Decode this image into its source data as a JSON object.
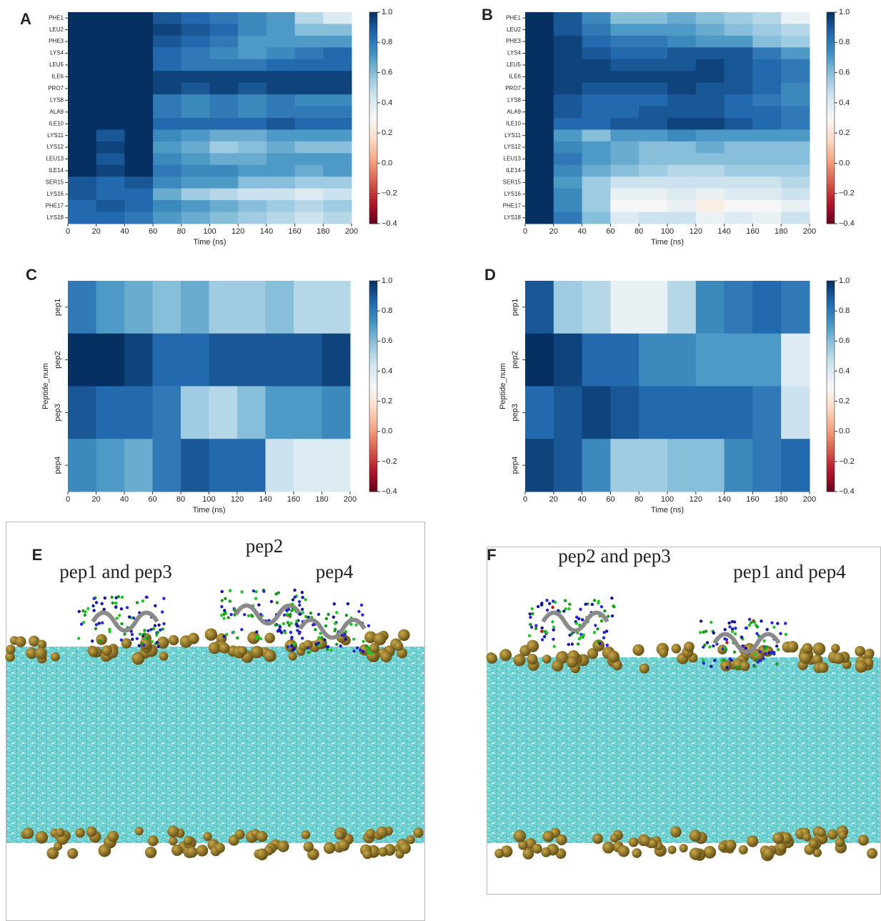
{
  "chart_data": [
    {
      "type": "heatmap",
      "panel": "A",
      "xlabel": "Time (ns)",
      "colormap": "RdBu",
      "rows": [
        "PHE1",
        "LEU2",
        "PHE3",
        "LYS4",
        "LEU5",
        "ILE6",
        "PRO7",
        "LYS8",
        "ALA9",
        "ILE10",
        "LYS11",
        "LYS12",
        "LEU13",
        "ILE14",
        "SER15",
        "LYS16",
        "PHE17",
        "LYS18"
      ],
      "x": [
        10,
        30,
        50,
        70,
        90,
        110,
        130,
        150,
        170,
        190
      ],
      "values": [
        [
          1,
          1,
          1,
          0.9,
          0.85,
          0.8,
          0.75,
          0.7,
          0.5,
          0.4
        ],
        [
          1,
          1,
          1,
          0.95,
          0.9,
          0.85,
          0.75,
          0.7,
          0.6,
          0.6
        ],
        [
          1,
          1,
          1,
          0.9,
          0.85,
          0.8,
          0.7,
          0.7,
          0.7,
          0.7
        ],
        [
          1,
          1,
          1,
          0.85,
          0.8,
          0.75,
          0.7,
          0.75,
          0.8,
          0.85
        ],
        [
          1,
          1,
          1,
          0.85,
          0.8,
          0.8,
          0.8,
          0.85,
          0.85,
          0.85
        ],
        [
          1,
          1,
          1,
          0.95,
          0.95,
          0.95,
          0.95,
          0.95,
          0.95,
          0.95
        ],
        [
          1,
          1,
          1,
          0.95,
          0.9,
          0.95,
          0.9,
          0.95,
          0.95,
          0.95
        ],
        [
          1,
          1,
          1,
          0.8,
          0.75,
          0.8,
          0.75,
          0.8,
          0.75,
          0.75
        ],
        [
          1,
          1,
          1,
          0.8,
          0.75,
          0.8,
          0.75,
          0.8,
          0.8,
          0.8
        ],
        [
          1,
          1,
          1,
          0.85,
          0.85,
          0.85,
          0.85,
          0.9,
          0.85,
          0.85
        ],
        [
          1,
          0.9,
          1,
          0.75,
          0.7,
          0.65,
          0.65,
          0.7,
          0.7,
          0.7
        ],
        [
          1,
          0.95,
          1,
          0.7,
          0.65,
          0.55,
          0.6,
          0.65,
          0.6,
          0.6
        ],
        [
          1,
          0.9,
          1,
          0.75,
          0.7,
          0.65,
          0.65,
          0.7,
          0.7,
          0.7
        ],
        [
          1,
          0.95,
          1,
          0.8,
          0.75,
          0.75,
          0.7,
          0.7,
          0.65,
          0.7
        ],
        [
          0.9,
          0.85,
          0.9,
          0.75,
          0.7,
          0.7,
          0.6,
          0.6,
          0.55,
          0.55
        ],
        [
          0.9,
          0.85,
          0.85,
          0.65,
          0.55,
          0.5,
          0.45,
          0.45,
          0.4,
          0.45
        ],
        [
          0.85,
          0.9,
          0.85,
          0.75,
          0.7,
          0.65,
          0.6,
          0.55,
          0.5,
          0.55
        ],
        [
          0.85,
          0.85,
          0.8,
          0.7,
          0.65,
          0.6,
          0.55,
          0.5,
          0.45,
          0.5
        ]
      ],
      "xlim": [
        0,
        200
      ],
      "xticks": [
        0,
        20,
        40,
        60,
        80,
        100,
        120,
        140,
        160,
        180,
        200
      ],
      "clim": [
        -0.4,
        1.0
      ],
      "cticks": [
        {
          "value": -0.4,
          "label": "−0.4"
        },
        {
          "value": -0.2,
          "label": "−0.2"
        },
        {
          "value": 0,
          "label": "0.0"
        },
        0.2,
        0.4,
        0.6,
        0.8,
        {
          "value": 1,
          "label": "1.0"
        }
      ]
    },
    {
      "type": "heatmap",
      "panel": "B",
      "xlabel": "Time (ns)",
      "colormap": "RdBu",
      "rows": [
        "PHE1",
        "LEU2",
        "PHE3",
        "LYS4",
        "LEU5",
        "ILE6",
        "PRO7",
        "LYS8",
        "ALA9",
        "ILE10",
        "LYS11",
        "LYS12",
        "LEU13",
        "ILE14",
        "SER15",
        "LYS16",
        "PHE17",
        "LYS18"
      ],
      "x": [
        10,
        30,
        50,
        70,
        90,
        110,
        130,
        150,
        170,
        190
      ],
      "values": [
        [
          1,
          0.9,
          0.75,
          0.6,
          0.6,
          0.65,
          0.6,
          0.55,
          0.5,
          0.35
        ],
        [
          1,
          0.9,
          0.8,
          0.7,
          0.7,
          0.7,
          0.65,
          0.6,
          0.55,
          0.5
        ],
        [
          1,
          0.95,
          0.85,
          0.8,
          0.8,
          0.75,
          0.7,
          0.7,
          0.6,
          0.55
        ],
        [
          1,
          0.95,
          0.9,
          0.85,
          0.85,
          0.9,
          0.9,
          0.9,
          0.8,
          0.7
        ],
        [
          1,
          0.95,
          0.95,
          0.9,
          0.9,
          0.9,
          0.95,
          0.9,
          0.85,
          0.8
        ],
        [
          1,
          0.95,
          0.95,
          0.95,
          0.95,
          0.95,
          0.95,
          0.9,
          0.85,
          0.8
        ],
        [
          1,
          0.95,
          0.9,
          0.9,
          0.9,
          0.95,
          0.9,
          0.9,
          0.85,
          0.75
        ],
        [
          1,
          0.9,
          0.85,
          0.85,
          0.85,
          0.9,
          0.9,
          0.85,
          0.8,
          0.75
        ],
        [
          1,
          0.9,
          0.85,
          0.85,
          0.9,
          0.9,
          0.9,
          0.85,
          0.85,
          0.8
        ],
        [
          1,
          0.85,
          0.85,
          0.9,
          0.9,
          0.95,
          0.95,
          0.9,
          0.85,
          0.8
        ],
        [
          1,
          0.7,
          0.6,
          0.7,
          0.7,
          0.75,
          0.7,
          0.7,
          0.7,
          0.7
        ],
        [
          1,
          0.75,
          0.7,
          0.65,
          0.6,
          0.6,
          0.65,
          0.6,
          0.6,
          0.6
        ],
        [
          1,
          0.8,
          0.7,
          0.65,
          0.6,
          0.6,
          0.6,
          0.6,
          0.6,
          0.6
        ],
        [
          1,
          0.75,
          0.65,
          0.6,
          0.55,
          0.5,
          0.5,
          0.55,
          0.55,
          0.55
        ],
        [
          1,
          0.7,
          0.55,
          0.45,
          0.45,
          0.45,
          0.45,
          0.45,
          0.45,
          0.5
        ],
        [
          1,
          0.75,
          0.55,
          0.35,
          0.35,
          0.4,
          0.35,
          0.4,
          0.4,
          0.45
        ],
        [
          1,
          0.75,
          0.55,
          0.3,
          0.3,
          0.35,
          0.25,
          0.3,
          0.3,
          0.35
        ],
        [
          1,
          0.8,
          0.6,
          0.4,
          0.45,
          0.45,
          0.35,
          0.4,
          0.35,
          0.45
        ]
      ],
      "xlim": [
        0,
        200
      ],
      "xticks": [
        0,
        20,
        40,
        60,
        80,
        100,
        120,
        140,
        160,
        180,
        200
      ],
      "clim": [
        -0.4,
        1.0
      ],
      "cticks": [
        {
          "value": -0.4,
          "label": "−0.4"
        },
        {
          "value": -0.2,
          "label": "−0.2"
        },
        {
          "value": 0,
          "label": "0.0"
        },
        0.2,
        0.4,
        0.6,
        0.8,
        {
          "value": 1,
          "label": "1.0"
        }
      ]
    },
    {
      "type": "heatmap",
      "panel": "C",
      "xlabel": "Time (ns)",
      "ylabel": "Peptide_num",
      "colormap": "RdBu",
      "rows": [
        "pep1",
        "pep2",
        "pep3",
        "pep4"
      ],
      "x": [
        10,
        30,
        50,
        70,
        90,
        110,
        130,
        150,
        170,
        190
      ],
      "values": [
        [
          0.8,
          0.7,
          0.65,
          0.6,
          0.65,
          0.55,
          0.55,
          0.6,
          0.5,
          0.5
        ],
        [
          1,
          1,
          0.95,
          0.85,
          0.85,
          0.9,
          0.9,
          0.9,
          0.9,
          0.95
        ],
        [
          0.9,
          0.85,
          0.85,
          0.8,
          0.55,
          0.5,
          0.6,
          0.7,
          0.7,
          0.75
        ],
        [
          0.75,
          0.7,
          0.65,
          0.8,
          0.9,
          0.85,
          0.85,
          0.45,
          0.4,
          0.4
        ]
      ],
      "xlim": [
        0,
        200
      ],
      "xticks": [
        0,
        20,
        40,
        60,
        80,
        100,
        120,
        140,
        160,
        180,
        200
      ],
      "clim": [
        -0.4,
        1.0
      ],
      "cticks": [
        {
          "value": -0.4,
          "label": "−0.4"
        },
        {
          "value": -0.2,
          "label": "−0.2"
        },
        {
          "value": 0,
          "label": "0.0"
        },
        0.2,
        0.4,
        0.6,
        0.8,
        {
          "value": 1,
          "label": "1.0"
        }
      ]
    },
    {
      "type": "heatmap",
      "panel": "D",
      "xlabel": "Time (ns)",
      "ylabel": "Peptide_num",
      "colormap": "RdBu",
      "rows": [
        "pep1",
        "pep2",
        "pep3",
        "pep4"
      ],
      "x": [
        10,
        30,
        50,
        70,
        90,
        110,
        130,
        150,
        170,
        190
      ],
      "values": [
        [
          0.9,
          0.55,
          0.5,
          0.35,
          0.35,
          0.5,
          0.75,
          0.8,
          0.85,
          0.8
        ],
        [
          1,
          0.95,
          0.85,
          0.85,
          0.75,
          0.75,
          0.7,
          0.7,
          0.7,
          0.4
        ],
        [
          0.85,
          0.9,
          0.95,
          0.9,
          0.85,
          0.85,
          0.85,
          0.85,
          0.8,
          0.45
        ],
        [
          0.95,
          0.9,
          0.75,
          0.55,
          0.55,
          0.6,
          0.6,
          0.75,
          0.8,
          0.85
        ]
      ],
      "xlim": [
        0,
        200
      ],
      "xticks": [
        0,
        20,
        40,
        60,
        80,
        100,
        120,
        140,
        160,
        180,
        200
      ],
      "clim": [
        -0.4,
        1.0
      ],
      "cticks": [
        {
          "value": -0.4,
          "label": "−0.4"
        },
        {
          "value": -0.2,
          "label": "−0.2"
        },
        {
          "value": 0,
          "label": "0.0"
        },
        0.2,
        0.4,
        0.6,
        0.8,
        {
          "value": 1,
          "label": "1.0"
        }
      ]
    }
  ],
  "renderings": [
    {
      "panel": "E",
      "labels": [
        "pep1 and pep3",
        "pep2",
        "pep4"
      ]
    },
    {
      "panel": "F",
      "labels": [
        "pep2 and pep3",
        "pep1 and pep4"
      ]
    }
  ]
}
